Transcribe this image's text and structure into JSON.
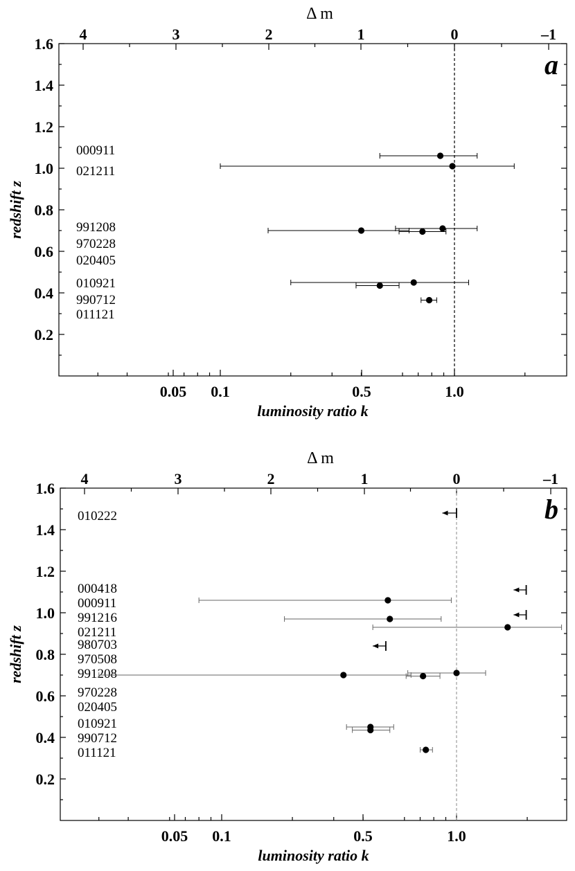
{
  "chart_data": [
    {
      "type": "scatter",
      "panel_label": "a",
      "top_axis_title": "Δ m",
      "top_ticks": [
        "4",
        "3",
        "2",
        "1",
        "0",
        "–1"
      ],
      "xlabel": "luminosity ratio k",
      "ylabel": "redshift z",
      "x_scale": "log",
      "xlim": [
        0.02,
        2.8
      ],
      "ylim": [
        0.0,
        1.6
      ],
      "x_tick_labels": [
        "0.05",
        "0.1",
        "0.5",
        "1.0"
      ],
      "y_tick_labels": [
        "0.2",
        "0.4",
        "0.6",
        "0.8",
        "1.0",
        "1.2",
        "1.4",
        "1.6"
      ],
      "reference_line_k": 1.0,
      "labels": [
        {
          "text": "000911",
          "z": 1.09
        },
        {
          "text": "021211",
          "z": 0.99
        },
        {
          "text": "991208",
          "z": 0.72
        },
        {
          "text": "970228",
          "z": 0.64
        },
        {
          "text": "020405",
          "z": 0.56
        },
        {
          "text": "010921",
          "z": 0.45
        },
        {
          "text": "990712",
          "z": 0.37
        },
        {
          "text": "011121",
          "z": 0.3
        }
      ],
      "points": [
        {
          "grb": "000911",
          "k": 0.87,
          "z": 1.06,
          "k_lo": 0.48,
          "k_hi": 1.25
        },
        {
          "grb": "021211",
          "k": 0.98,
          "z": 1.01,
          "k_lo": 0.1,
          "k_hi": 1.8
        },
        {
          "grb": "991208",
          "k": 0.89,
          "z": 0.71,
          "k_lo": 0.56,
          "k_hi": 1.25
        },
        {
          "grb": "991208",
          "k": 0.4,
          "z": 0.7,
          "k_lo": 0.16,
          "k_hi": 0.64
        },
        {
          "grb": "970228",
          "k": 0.73,
          "z": 0.695,
          "k_lo": 0.58,
          "k_hi": 0.92
        },
        {
          "grb": "010921",
          "k": 0.67,
          "z": 0.45,
          "k_lo": 0.2,
          "k_hi": 1.15
        },
        {
          "grb": "010921",
          "k": 0.48,
          "z": 0.435,
          "k_lo": 0.38,
          "k_hi": 0.58
        },
        {
          "grb": "990712",
          "k": 0.78,
          "z": 0.365,
          "k_lo": 0.72,
          "k_hi": 0.84
        }
      ],
      "upper_limits": []
    },
    {
      "type": "scatter",
      "panel_label": "b",
      "top_axis_title": "Δ m",
      "top_ticks": [
        "4",
        "3",
        "2",
        "1",
        "0",
        "–1"
      ],
      "xlabel": "luminosity ratio k",
      "ylabel": "redshift z",
      "x_scale": "log",
      "xlim": [
        0.02,
        2.8
      ],
      "ylim": [
        0.0,
        1.6
      ],
      "x_tick_labels": [
        "0.05",
        "0.1",
        "0.5",
        "1.0"
      ],
      "y_tick_labels": [
        "0.2",
        "0.4",
        "0.6",
        "0.8",
        "1.0",
        "1.2",
        "1.4",
        "1.6"
      ],
      "reference_line_k": 1.0,
      "labels": [
        {
          "text": "010222",
          "z": 1.47
        },
        {
          "text": "000418",
          "z": 1.12
        },
        {
          "text": "000911",
          "z": 1.05
        },
        {
          "text": "991216",
          "z": 0.98
        },
        {
          "text": "021211",
          "z": 0.91
        },
        {
          "text": "980703",
          "z": 0.85
        },
        {
          "text": "970508",
          "z": 0.78
        },
        {
          "text": "991208",
          "z": 0.71
        },
        {
          "text": "970228",
          "z": 0.62
        },
        {
          "text": "020405",
          "z": 0.55
        },
        {
          "text": "010921",
          "z": 0.47
        },
        {
          "text": "990712",
          "z": 0.4
        },
        {
          "text": "011121",
          "z": 0.33
        }
      ],
      "points": [
        {
          "grb": "000911",
          "k": 0.51,
          "z": 1.06,
          "k_lo": 0.08,
          "k_hi": 0.95
        },
        {
          "grb": "991216",
          "k": 0.52,
          "z": 0.97,
          "k_lo": 0.185,
          "k_hi": 0.86
        },
        {
          "grb": "021211",
          "k": 1.65,
          "z": 0.93,
          "k_lo": 0.44,
          "k_hi": 2.8
        },
        {
          "grb": "991208",
          "k": 1.0,
          "z": 0.71,
          "k_lo": 0.62,
          "k_hi": 1.33
        },
        {
          "grb": "991208",
          "k": 0.33,
          "z": 0.7,
          "k_lo": 0.03,
          "k_hi": 0.64
        },
        {
          "grb": "970228",
          "k": 0.72,
          "z": 0.695,
          "k_lo": 0.61,
          "k_hi": 0.85
        },
        {
          "grb": "010921",
          "k": 0.43,
          "z": 0.45,
          "k_lo": 0.34,
          "k_hi": 0.54
        },
        {
          "grb": "010921",
          "k": 0.43,
          "z": 0.435,
          "k_lo": 0.36,
          "k_hi": 0.52
        },
        {
          "grb": "990712",
          "k": 0.74,
          "z": 0.34,
          "k_lo": 0.7,
          "k_hi": 0.79
        }
      ],
      "upper_limits": [
        {
          "grb": "010222",
          "k": 1.0,
          "z": 1.48,
          "arrow_to_k": 0.87
        },
        {
          "grb": "000418",
          "k": 1.98,
          "z": 1.11,
          "arrow_to_k": 1.75
        },
        {
          "grb": "991216",
          "k": 1.98,
          "z": 0.99,
          "arrow_to_k": 1.75
        },
        {
          "grb": "970508",
          "k": 0.5,
          "z": 0.84,
          "arrow_to_k": 0.44
        }
      ]
    }
  ]
}
